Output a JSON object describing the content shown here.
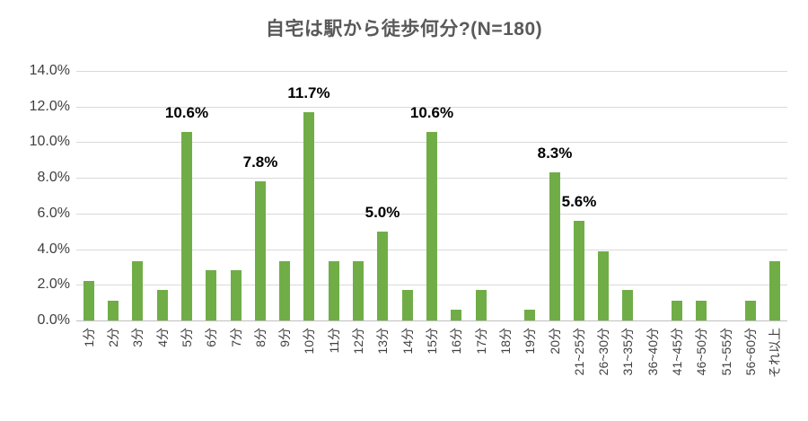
{
  "colors": {
    "background": "#FFFFFF",
    "bar": "#70AD47",
    "grid": "#D9D9D9",
    "axis_line": "#BFBFBF",
    "title": "#595959",
    "tick_label": "#404040",
    "data_label": "#000000"
  },
  "chart_data": {
    "type": "bar",
    "title": "自宅は駅から徒歩何分?(N=180)",
    "xlabel": "",
    "ylabel": "",
    "grid": true,
    "legend": "none",
    "ylim": [
      0,
      14
    ],
    "y_ticks": [
      {
        "value": 14,
        "label": "14.0%"
      },
      {
        "value": 12,
        "label": "12.0%"
      },
      {
        "value": 10,
        "label": "10.0%"
      },
      {
        "value": 8,
        "label": "8.0%"
      },
      {
        "value": 6,
        "label": "6.0%"
      },
      {
        "value": 4,
        "label": "4.0%"
      },
      {
        "value": 2,
        "label": "2.0%"
      },
      {
        "value": 0,
        "label": "0.0%"
      }
    ],
    "categories": [
      "1分",
      "2分",
      "3分",
      "4分",
      "5分",
      "6分",
      "7分",
      "8分",
      "9分",
      "10分",
      "11分",
      "12分",
      "13分",
      "14分",
      "15分",
      "16分",
      "17分",
      "18分",
      "19分",
      "20分",
      "21~25分",
      "26~30分",
      "31~35分",
      "36~40分",
      "41~45分",
      "46~50分",
      "51~55分",
      "56~60分",
      "それ以上"
    ],
    "values": [
      2.2,
      1.1,
      3.3,
      1.7,
      10.6,
      2.8,
      2.8,
      7.8,
      3.3,
      11.7,
      3.3,
      3.3,
      5.0,
      1.7,
      10.6,
      0.6,
      1.7,
      0.0,
      0.6,
      8.3,
      5.6,
      3.9,
      1.7,
      0.0,
      1.1,
      1.1,
      0.0,
      1.1,
      3.3
    ],
    "data_labels": [
      {
        "index": 4,
        "text": "10.6%"
      },
      {
        "index": 7,
        "text": "7.8%"
      },
      {
        "index": 9,
        "text": "11.7%"
      },
      {
        "index": 12,
        "text": "5.0%"
      },
      {
        "index": 14,
        "text": "10.6%"
      },
      {
        "index": 19,
        "text": "8.3%"
      },
      {
        "index": 20,
        "text": "5.6%"
      }
    ]
  }
}
